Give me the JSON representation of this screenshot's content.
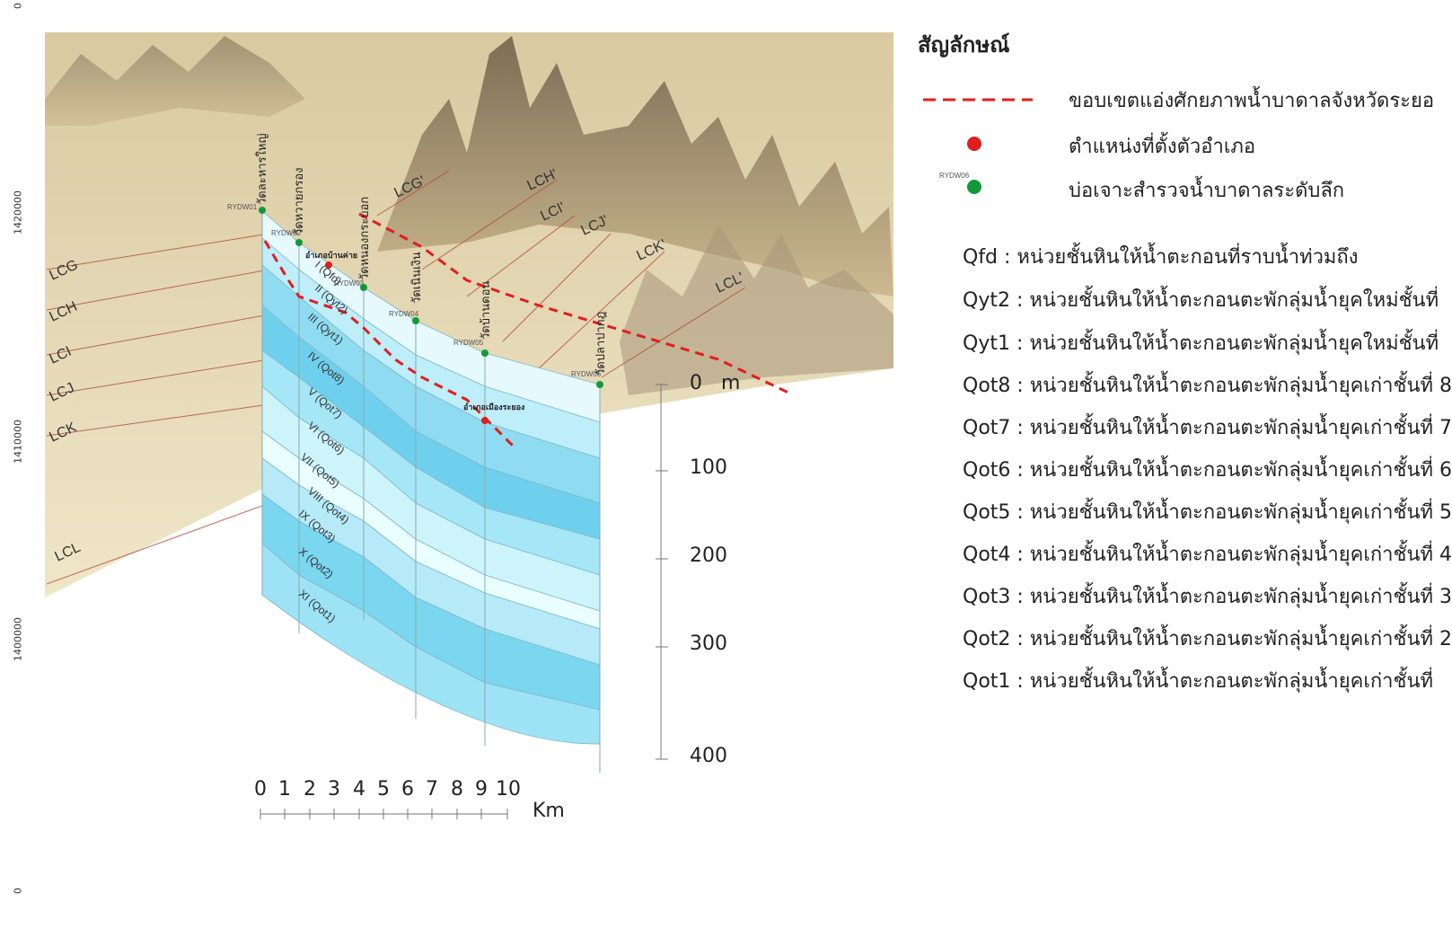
{
  "y_axis": {
    "top_fragment": "0",
    "labels": [
      "1420000",
      "1410000",
      "1400000"
    ],
    "bottom_fragment": "0"
  },
  "diagram": {
    "section_lines": [
      "LCG",
      "LCH",
      "LCI",
      "LCJ",
      "LCK",
      "LCL"
    ],
    "section_lines_prime": [
      "LCG'",
      "LCH'",
      "LCI'",
      "LCJ'",
      "LCK'",
      "LCL'"
    ],
    "wells": [
      {
        "id": "RYDW01",
        "name": "วัดละหารใหญ่"
      },
      {
        "id": "RYDW02",
        "name": "วัดหวายกรอง"
      },
      {
        "id": "RYDW03",
        "name": "วัดหนองกระบอก"
      },
      {
        "id": "RYDW04",
        "name": "วัดเนินเงิน"
      },
      {
        "id": "RYDW05",
        "name": "วัดบ้านดอน"
      },
      {
        "id": "RYDW06",
        "name": "วัดปลาปากฎ"
      }
    ],
    "districts": [
      "อำเภอบ้านค่าย",
      "อำเภอเมืองระยอง"
    ],
    "layers": [
      "I (Qfd)",
      "II (Qyt2)",
      "III (Qyt1)",
      "IV (Qot8)",
      "V (Qot7)",
      "VI (Qot6)",
      "VII (Qot5)",
      "VIII (Qot4)",
      "IX (Qot3)",
      "X (Qot2)",
      "XI (Qot1)"
    ],
    "depth_scale": [
      "0",
      "100",
      "200",
      "300",
      "400"
    ],
    "depth_unit": "m",
    "km_scale": [
      "0",
      "1",
      "2",
      "3",
      "4",
      "5",
      "6",
      "7",
      "8",
      "9",
      "10"
    ],
    "km_unit": "Km",
    "colors": {
      "terrain": "#e8dcb4",
      "mountain": "#7a6a55",
      "section_a": "#6fd4f0",
      "section_b": "#a5e6f7",
      "boundary_line": "#e11e1e",
      "district_dot": "#e11e1e",
      "well_dot": "#129a3a"
    }
  },
  "legend": {
    "title": "สัญลักษณ์",
    "items": [
      {
        "symbol": "dashed-red-line",
        "label": "ขอบเขตแอ่งศักยภาพน้ำบาดาลจังหวัดระยอ"
      },
      {
        "symbol": "red-dot",
        "label": "ตำแหน่งที่ตั้งตัวอำเภอ"
      },
      {
        "symbol": "green-dot",
        "symbol_label": "RYDW06",
        "label": "บ่อเจาะสำรวจน้ำบาดาลระดับลึก"
      }
    ],
    "units": [
      "Qfd  : หน่วยชั้นหินให้น้ำตะกอนที่ราบน้ำท่วมถึง",
      "Qyt2 : หน่วยชั้นหินให้น้ำตะกอนตะพักลุ่มน้ำยุคใหม่ชั้นที่",
      "Qyt1 : หน่วยชั้นหินให้น้ำตะกอนตะพักลุ่มน้ำยุคใหม่ชั้นที่",
      "Qot8 : หน่วยชั้นหินให้น้ำตะกอนตะพักลุ่มน้ำยุคเก่าชั้นที่ 8",
      "Qot7 : หน่วยชั้นหินให้น้ำตะกอนตะพักลุ่มน้ำยุคเก่าชั้นที่ 7",
      "Qot6 : หน่วยชั้นหินให้น้ำตะกอนตะพักลุ่มน้ำยุคเก่าชั้นที่ 6",
      "Qot5 : หน่วยชั้นหินให้น้ำตะกอนตะพักลุ่มน้ำยุคเก่าชั้นที่ 5",
      "Qot4 : หน่วยชั้นหินให้น้ำตะกอนตะพักลุ่มน้ำยุคเก่าชั้นที่ 4",
      "Qot3 : หน่วยชั้นหินให้น้ำตะกอนตะพักลุ่มน้ำยุคเก่าชั้นที่ 3",
      "Qot2 : หน่วยชั้นหินให้น้ำตะกอนตะพักลุ่มน้ำยุคเก่าชั้นที่ 2",
      "Qot1 : หน่วยชั้นหินให้น้ำตะกอนตะพักลุ่มน้ำยุคเก่าชั้นที่"
    ]
  }
}
